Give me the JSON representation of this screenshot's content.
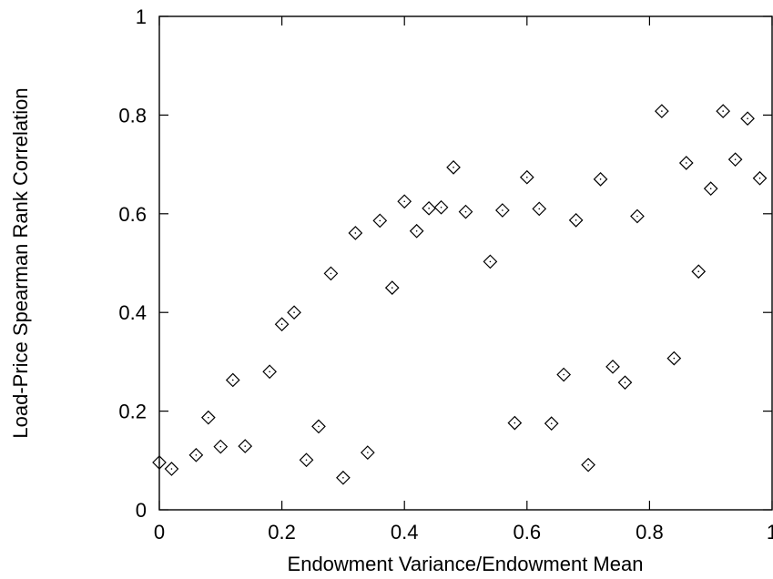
{
  "chart_data": {
    "type": "scatter",
    "xlabel": "Endowment Variance/Endowment Mean",
    "ylabel": "Load-Price Spearman Rank Correlation",
    "xlim": [
      0,
      1
    ],
    "ylim": [
      0,
      1
    ],
    "xticks": [
      0,
      0.2,
      0.4,
      0.6,
      0.8,
      1
    ],
    "xtick_labels": [
      "0",
      "0.2",
      "0.4",
      "0.6",
      "0.8",
      "1"
    ],
    "yticks": [
      0,
      0.2,
      0.4,
      0.6,
      0.8,
      1
    ],
    "ytick_labels": [
      "0",
      "0.2",
      "0.4",
      "0.6",
      "0.8",
      "1"
    ],
    "marker": "diamond",
    "grid": false,
    "legend": "none",
    "points": [
      {
        "x": 0.0,
        "y": 0.096
      },
      {
        "x": 0.02,
        "y": 0.083
      },
      {
        "x": 0.06,
        "y": 0.111
      },
      {
        "x": 0.08,
        "y": 0.187
      },
      {
        "x": 0.1,
        "y": 0.128
      },
      {
        "x": 0.12,
        "y": 0.263
      },
      {
        "x": 0.14,
        "y": 0.129
      },
      {
        "x": 0.18,
        "y": 0.28
      },
      {
        "x": 0.2,
        "y": 0.376
      },
      {
        "x": 0.22,
        "y": 0.4
      },
      {
        "x": 0.24,
        "y": 0.101
      },
      {
        "x": 0.26,
        "y": 0.169
      },
      {
        "x": 0.28,
        "y": 0.479
      },
      {
        "x": 0.3,
        "y": 0.065
      },
      {
        "x": 0.32,
        "y": 0.561
      },
      {
        "x": 0.34,
        "y": 0.116
      },
      {
        "x": 0.36,
        "y": 0.586
      },
      {
        "x": 0.38,
        "y": 0.45
      },
      {
        "x": 0.4,
        "y": 0.625
      },
      {
        "x": 0.42,
        "y": 0.565
      },
      {
        "x": 0.44,
        "y": 0.611
      },
      {
        "x": 0.46,
        "y": 0.613
      },
      {
        "x": 0.48,
        "y": 0.694
      },
      {
        "x": 0.5,
        "y": 0.604
      },
      {
        "x": 0.54,
        "y": 0.503
      },
      {
        "x": 0.56,
        "y": 0.607
      },
      {
        "x": 0.58,
        "y": 0.176
      },
      {
        "x": 0.6,
        "y": 0.674
      },
      {
        "x": 0.62,
        "y": 0.61
      },
      {
        "x": 0.64,
        "y": 0.175
      },
      {
        "x": 0.66,
        "y": 0.274
      },
      {
        "x": 0.68,
        "y": 0.587
      },
      {
        "x": 0.7,
        "y": 0.091
      },
      {
        "x": 0.72,
        "y": 0.67
      },
      {
        "x": 0.74,
        "y": 0.29
      },
      {
        "x": 0.76,
        "y": 0.258
      },
      {
        "x": 0.78,
        "y": 0.595
      },
      {
        "x": 0.82,
        "y": 0.808
      },
      {
        "x": 0.84,
        "y": 0.307
      },
      {
        "x": 0.86,
        "y": 0.703
      },
      {
        "x": 0.88,
        "y": 0.483
      },
      {
        "x": 0.9,
        "y": 0.651
      },
      {
        "x": 0.92,
        "y": 0.808
      },
      {
        "x": 0.94,
        "y": 0.71
      },
      {
        "x": 0.96,
        "y": 0.793
      },
      {
        "x": 0.98,
        "y": 0.672
      }
    ]
  }
}
